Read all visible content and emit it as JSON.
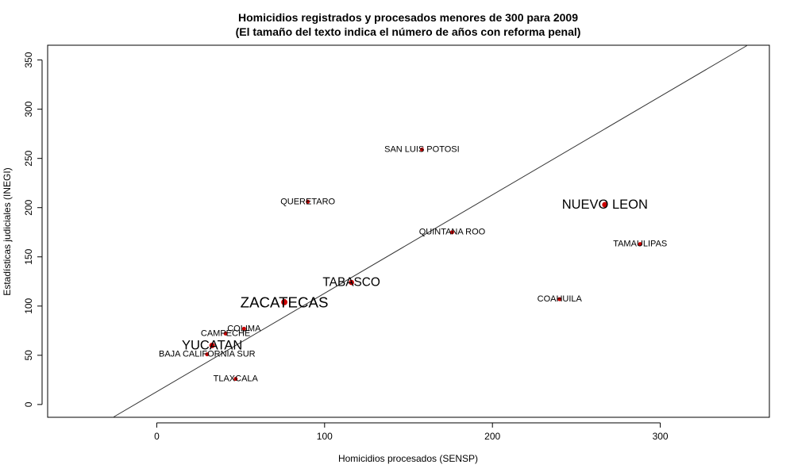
{
  "chart_data": {
    "type": "scatter",
    "title": "Homicidios registrados y procesados menores de 300 para 2009",
    "subtitle": "(El tamaño del texto indica el número de años con reforma penal)",
    "xlabel": "Homicidios procesados (SENSP)",
    "ylabel": "Estadísticas judiciales (INEGI)",
    "xlim": [
      -65,
      365
    ],
    "ylim": [
      -13,
      365
    ],
    "xticks": [
      0,
      100,
      200,
      300
    ],
    "yticks": [
      0,
      50,
      100,
      150,
      200,
      250,
      300,
      350
    ],
    "point_color": "#cc0000",
    "reference_line": {
      "intercept": 13,
      "slope": 1
    },
    "points": [
      {
        "label": "SAN LUIS POTOSI",
        "x": 158,
        "y": 259,
        "size": 1
      },
      {
        "label": "QUERETARO",
        "x": 90,
        "y": 206,
        "size": 1
      },
      {
        "label": "NUEVO LEON",
        "x": 267,
        "y": 203,
        "size": 1.5
      },
      {
        "label": "QUINTANA ROO",
        "x": 176,
        "y": 175,
        "size": 1
      },
      {
        "label": "TAMAULIPAS",
        "x": 288,
        "y": 163,
        "size": 1
      },
      {
        "label": "TABASCO",
        "x": 116,
        "y": 124,
        "size": 1.4
      },
      {
        "label": "ZACATECAS",
        "x": 76,
        "y": 104,
        "size": 1.7
      },
      {
        "label": "COAHUILA",
        "x": 240,
        "y": 107,
        "size": 1
      },
      {
        "label": "COLIMA",
        "x": 52,
        "y": 77,
        "size": 1
      },
      {
        "label": "CAMPECHE",
        "x": 41,
        "y": 72,
        "size": 1
      },
      {
        "label": "YUCATAN",
        "x": 33,
        "y": 60,
        "size": 1.5
      },
      {
        "label": "BAJA CALIFORNIA SUR",
        "x": 30,
        "y": 51,
        "size": 1
      },
      {
        "label": "TLAXCALA",
        "x": 47,
        "y": 26,
        "size": 1
      }
    ]
  }
}
